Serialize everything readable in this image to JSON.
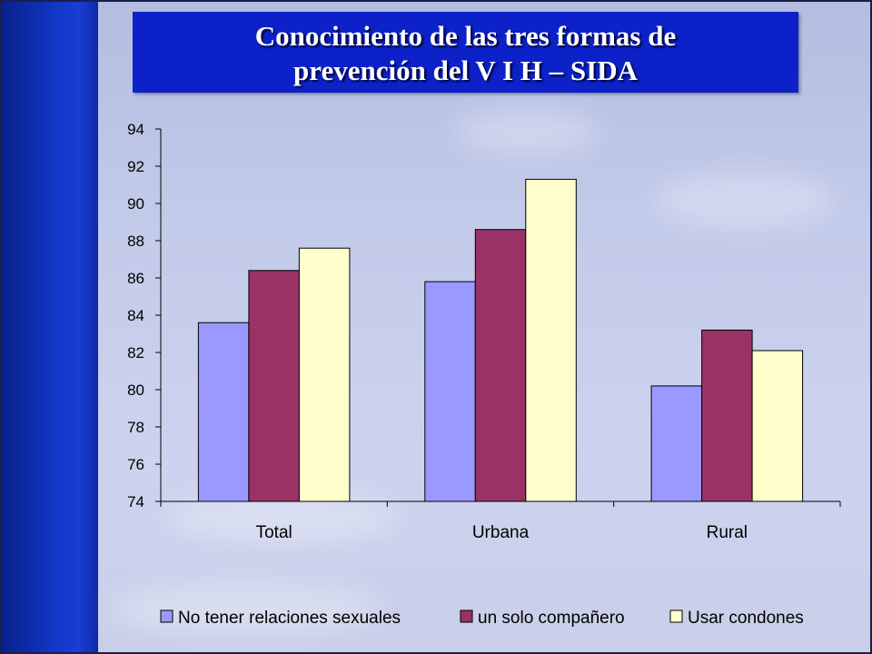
{
  "chart_data": {
    "type": "bar",
    "title": "Conocimiento de las  tres formas de\nprevención del V I H – SIDA",
    "categories": [
      "Total",
      "Urbana",
      "Rural"
    ],
    "series": [
      {
        "name": "No tener relaciones sexuales",
        "color": "#9999ff",
        "values": [
          83.6,
          85.8,
          80.2
        ]
      },
      {
        "name": "un solo compañero",
        "color": "#993366",
        "values": [
          86.4,
          88.6,
          83.2
        ]
      },
      {
        "name": "Usar condones",
        "color": "#ffffcc",
        "values": [
          87.6,
          91.3,
          82.1
        ]
      }
    ],
    "ylim": [
      74,
      94
    ],
    "yticks": [
      74,
      76,
      78,
      80,
      82,
      84,
      86,
      88,
      90,
      92,
      94
    ],
    "grid": false,
    "legend_position": "bottom"
  }
}
